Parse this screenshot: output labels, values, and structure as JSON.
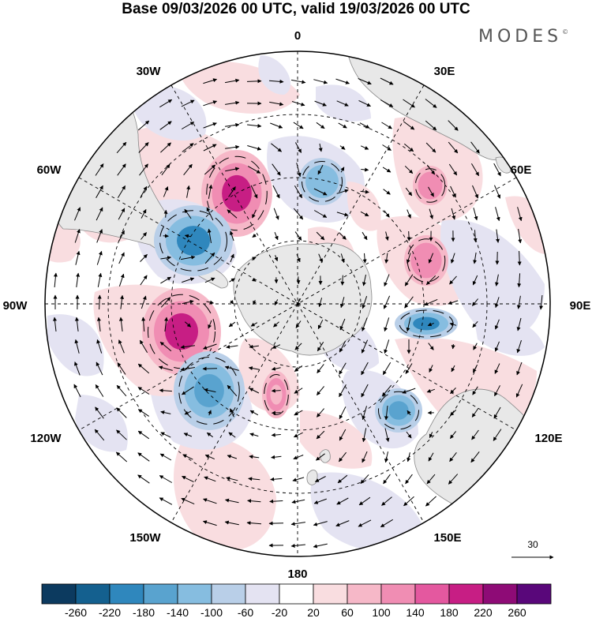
{
  "title": "Base 09/03/2026 00 UTC, valid 19/03/2026 00 UTC",
  "brand": "MODES",
  "brand_mark": "©",
  "map": {
    "projection": "south polar stereographic",
    "longitude_labels": {
      "0": "0",
      "30E": "30E",
      "60E": "60E",
      "90E": "90E",
      "120E": "120E",
      "150E": "150E",
      "180": "180",
      "150W": "150W",
      "120W": "120W",
      "90W": "90W",
      "60W": "60W",
      "30W": "30W"
    },
    "vector_key_value": "30",
    "colors": {
      "land": "#e8e8e8",
      "coast": "#888888",
      "grid": "#000000"
    }
  },
  "colorbar": {
    "ticks": [
      "-260",
      "-220",
      "-180",
      "-140",
      "-100",
      "-60",
      "-20",
      "20",
      "60",
      "100",
      "140",
      "180",
      "220",
      "260"
    ],
    "colors": [
      "#0c3a5f",
      "#14608f",
      "#2f87bd",
      "#59a3cf",
      "#86bde0",
      "#b9cfe8",
      "#e4e3f2",
      "#ffffff",
      "#f9dde0",
      "#f6b8c8",
      "#f08db3",
      "#e4589f",
      "#c71e84",
      "#8e0b76",
      "#59077a"
    ]
  },
  "anomalies": [
    {
      "name": "anomaly-positive-1",
      "value": 240,
      "color": "#c71e84"
    },
    {
      "name": "anomaly-negative-1",
      "value": -170,
      "color": "#2f87bd"
    },
    {
      "name": "anomaly-positive-2",
      "value": 240,
      "color": "#c71e84"
    },
    {
      "name": "anomaly-negative-2",
      "value": -140,
      "color": "#59a3cf"
    },
    {
      "name": "anomaly-negative-3",
      "value": -120,
      "color": "#86bde0"
    },
    {
      "name": "anomaly-negative-4",
      "value": -160,
      "color": "#2f87bd"
    },
    {
      "name": "anomaly-negative-5",
      "value": -140,
      "color": "#59a3cf"
    },
    {
      "name": "anomaly-positive-3",
      "value": 110,
      "color": "#f08db3"
    },
    {
      "name": "anomaly-positive-4",
      "value": 80,
      "color": "#f6b8c8"
    },
    {
      "name": "anomaly-positive-5",
      "value": 130,
      "color": "#f08db3"
    }
  ]
}
